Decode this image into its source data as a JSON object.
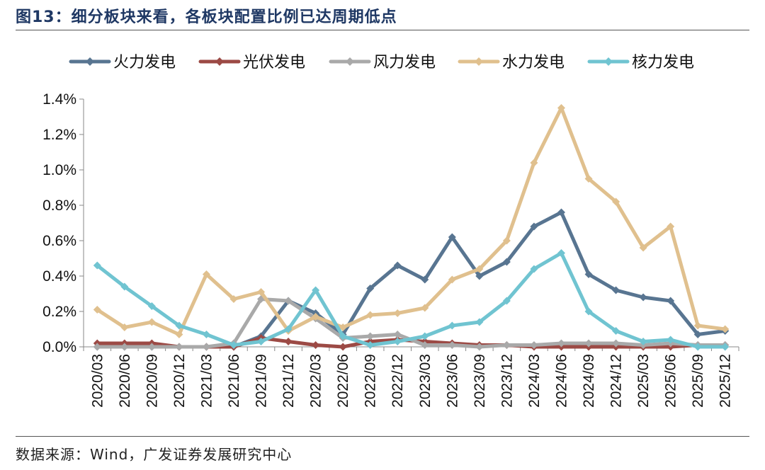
{
  "header": {
    "title": "图13：细分板块来看，各板块配置比例已达周期低点"
  },
  "footer": {
    "source": "数据来源：Wind，广发证券发展研究中心"
  },
  "colors": {
    "thermal": "#587591",
    "solar": "#9c4a45",
    "wind": "#a9a9a9",
    "hydro": "#e0c08e",
    "nuclear": "#70c4d1"
  },
  "chart_data": {
    "type": "line",
    "title": "",
    "xlabel": "",
    "ylabel": "",
    "ylim": [
      0,
      0.014
    ],
    "y_ticks": [
      "0.0%",
      "0.2%",
      "0.4%",
      "0.6%",
      "0.8%",
      "1.0%",
      "1.2%",
      "1.4%"
    ],
    "y_tick_values": [
      0,
      0.002,
      0.004,
      0.006,
      0.008,
      0.01,
      0.012,
      0.014
    ],
    "grid": false,
    "legend_position": "top",
    "categories": [
      "2020/03",
      "2020/06",
      "2020/09",
      "2020/12",
      "2021/03",
      "2021/06",
      "2021/09",
      "2021/12",
      "2022/03",
      "2022/06",
      "2022/09",
      "2022/12",
      "2023/03",
      "2023/06",
      "2023/09",
      "2023/12",
      "2024/03",
      "2024/06",
      "2024/09",
      "2024/12",
      "2025/03",
      "2025/06",
      "2025/09",
      "2025/12"
    ],
    "series": [
      {
        "name": "火力发电",
        "color": "#587591",
        "values": [
          0.0,
          0.0,
          0.0,
          0.0,
          0.0,
          0.0,
          0.0006,
          0.0026,
          0.0019,
          0.0007,
          0.0033,
          0.0046,
          0.0038,
          0.0062,
          0.004,
          0.0048,
          0.0068,
          0.0076,
          0.0041,
          0.0032,
          0.0028,
          0.0026,
          0.0007,
          0.0009
        ]
      },
      {
        "name": "光伏发电",
        "color": "#9c4a45",
        "values": [
          0.0002,
          0.0002,
          0.0002,
          0.0,
          0.0,
          0.0,
          0.0005,
          0.0003,
          0.0001,
          0.0,
          0.0003,
          0.0004,
          0.0003,
          0.0002,
          0.0001,
          0.0001,
          0.0,
          0.0,
          0.0,
          0.0,
          0.0,
          0.0,
          0.0001,
          0.0001
        ]
      },
      {
        "name": "风力发电",
        "color": "#a9a9a9",
        "values": [
          0.0,
          0.0,
          0.0,
          0.0,
          0.0,
          0.0002,
          0.0027,
          0.0026,
          0.0016,
          0.0005,
          0.0006,
          0.0007,
          0.0001,
          0.0001,
          0.0,
          0.0001,
          0.0001,
          0.0002,
          0.0002,
          0.0002,
          0.0001,
          0.0002,
          0.0001,
          0.0001
        ]
      },
      {
        "name": "水力发电",
        "color": "#e0c08e",
        "values": [
          0.0021,
          0.0011,
          0.0014,
          0.0007,
          0.0041,
          0.0027,
          0.0031,
          0.0009,
          0.0017,
          0.0011,
          0.0018,
          0.0019,
          0.0022,
          0.0038,
          0.0044,
          0.006,
          0.0104,
          0.0135,
          0.0095,
          0.0082,
          0.0056,
          0.0068,
          0.0012,
          0.001
        ]
      },
      {
        "name": "核力发电",
        "color": "#70c4d1",
        "values": [
          0.0046,
          0.0034,
          0.0023,
          0.0012,
          0.0007,
          0.0001,
          0.0003,
          0.001,
          0.0032,
          0.0006,
          0.0001,
          0.0003,
          0.0006,
          0.0012,
          0.0014,
          0.0026,
          0.0044,
          0.0053,
          0.002,
          0.0009,
          0.0003,
          0.0004,
          0.0,
          0.0
        ]
      }
    ]
  }
}
